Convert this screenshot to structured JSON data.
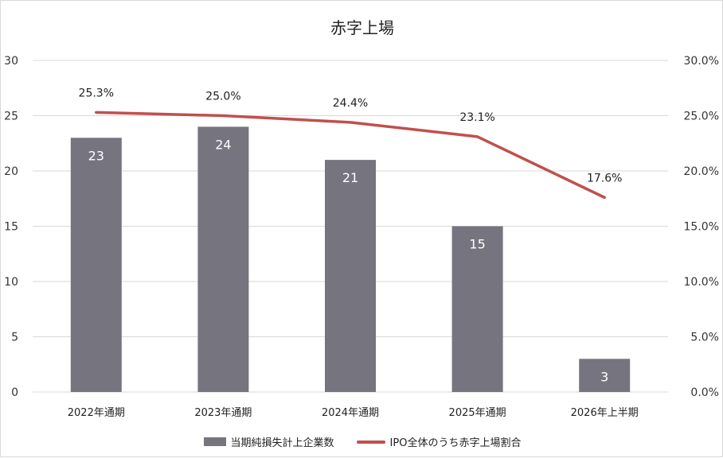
{
  "chart_data": {
    "type": "bar",
    "title": "赤字上場",
    "categories": [
      "2022年通期",
      "2023年通期",
      "2024年通期",
      "2025年通期",
      "2026年上半期"
    ],
    "series": [
      {
        "name": "当期純損失計上企業数",
        "type": "bar",
        "axis": "left",
        "values": [
          23,
          24,
          21,
          15,
          3
        ],
        "labels": [
          "23",
          "24",
          "21",
          "15",
          "3"
        ],
        "color": "#76757f"
      },
      {
        "name": "IPO全体のうち赤字上場割合",
        "type": "line",
        "axis": "right",
        "values": [
          25.3,
          25.0,
          24.4,
          23.1,
          17.6
        ],
        "labels": [
          "25.3%",
          "25.0%",
          "24.4%",
          "23.1%",
          "17.6%"
        ],
        "color": "#c0504d"
      }
    ],
    "y_left": {
      "range": [
        0,
        30
      ],
      "ticks": [
        "0",
        "5",
        "10",
        "15",
        "20",
        "25",
        "30"
      ]
    },
    "y_right": {
      "range": [
        0,
        30
      ],
      "ticks": [
        "0.0%",
        "5.0%",
        "10.0%",
        "15.0%",
        "20.0%",
        "25.0%",
        "30.0%"
      ]
    },
    "grid": true,
    "grid_color": "#d9d9d9",
    "legend_position": "bottom"
  }
}
